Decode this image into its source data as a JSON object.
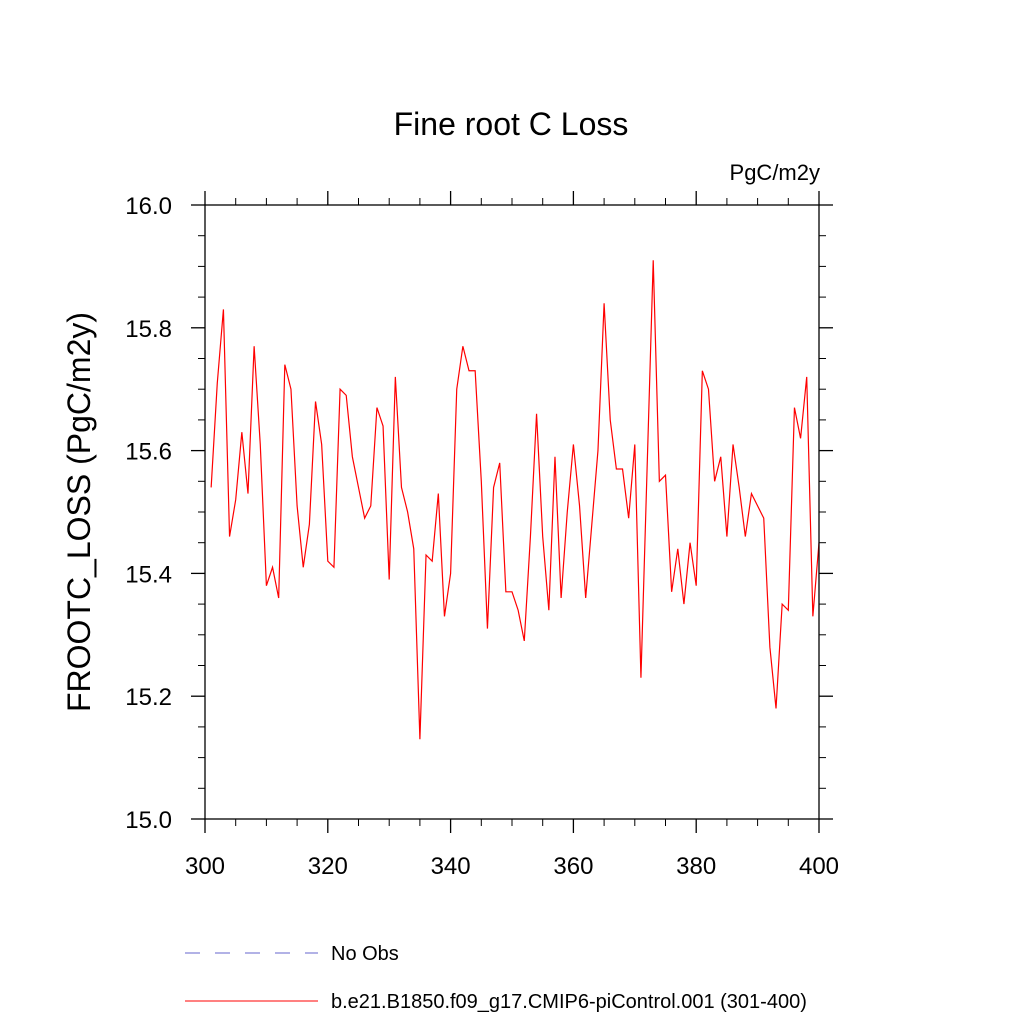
{
  "chart_data": {
    "type": "line",
    "title": "Fine root C Loss",
    "units": "PgC/m2y",
    "xlabel": "",
    "ylabel": "FROOTC_LOSS  (PgC/m2y)",
    "xlim": [
      300,
      400
    ],
    "ylim": [
      15.0,
      16.0
    ],
    "x_ticks": [
      300,
      320,
      340,
      360,
      380,
      400
    ],
    "x_tick_labels": [
      "300",
      "320",
      "340",
      "360",
      "380",
      "400"
    ],
    "y_ticks": [
      15.0,
      15.2,
      15.4,
      15.6,
      15.8,
      16.0
    ],
    "y_tick_labels": [
      "15.0",
      "15.2",
      "15.4",
      "15.6",
      "15.8",
      "16.0"
    ],
    "grid": false,
    "legend_position": "bottom",
    "x": [
      301,
      302,
      303,
      304,
      305,
      306,
      307,
      308,
      309,
      310,
      311,
      312,
      313,
      314,
      315,
      316,
      317,
      318,
      319,
      320,
      321,
      322,
      323,
      324,
      325,
      326,
      327,
      328,
      329,
      330,
      331,
      332,
      333,
      334,
      335,
      336,
      337,
      338,
      339,
      340,
      341,
      342,
      343,
      344,
      345,
      346,
      347,
      348,
      349,
      350,
      351,
      352,
      353,
      354,
      355,
      356,
      357,
      358,
      359,
      360,
      361,
      362,
      363,
      364,
      365,
      366,
      367,
      368,
      369,
      370,
      371,
      372,
      373,
      374,
      375,
      376,
      377,
      378,
      379,
      380,
      381,
      382,
      383,
      384,
      385,
      386,
      387,
      388,
      389,
      390,
      391,
      392,
      393,
      394,
      395,
      396,
      397,
      398,
      399,
      400
    ],
    "series": [
      {
        "name": "b.e21.B1850.f09_g17.CMIP6-piControl.001 (301-400)",
        "color": "#ff0000",
        "dash": "solid",
        "values": [
          15.54,
          15.71,
          15.83,
          15.46,
          15.52,
          15.63,
          15.53,
          15.77,
          15.61,
          15.38,
          15.41,
          15.36,
          15.74,
          15.7,
          15.51,
          15.41,
          15.48,
          15.68,
          15.61,
          15.42,
          15.41,
          15.7,
          15.69,
          15.59,
          15.54,
          15.49,
          15.51,
          15.67,
          15.64,
          15.39,
          15.72,
          15.54,
          15.5,
          15.44,
          15.13,
          15.43,
          15.42,
          15.53,
          15.33,
          15.4,
          15.7,
          15.77,
          15.73,
          15.73,
          15.55,
          15.31,
          15.54,
          15.58,
          15.37,
          15.37,
          15.34,
          15.29,
          15.46,
          15.66,
          15.46,
          15.34,
          15.59,
          15.36,
          15.5,
          15.61,
          15.51,
          15.36,
          15.48,
          15.6,
          15.84,
          15.65,
          15.57,
          15.57,
          15.49,
          15.61,
          15.23,
          15.57,
          15.91,
          15.55,
          15.56,
          15.37,
          15.44,
          15.35,
          15.45,
          15.38,
          15.73,
          15.7,
          15.55,
          15.59,
          15.46,
          15.61,
          15.54,
          15.46,
          15.53,
          15.51,
          15.49,
          15.28,
          15.18,
          15.35,
          15.34,
          15.67,
          15.62,
          15.72,
          15.33,
          15.45
        ]
      }
    ],
    "legend": [
      {
        "name": "No Obs",
        "color": "#6666cc",
        "dash": "dashed"
      },
      {
        "name": "b.e21.B1850.f09_g17.CMIP6-piControl.001 (301-400)",
        "color": "#ff0000",
        "dash": "solid"
      }
    ]
  }
}
